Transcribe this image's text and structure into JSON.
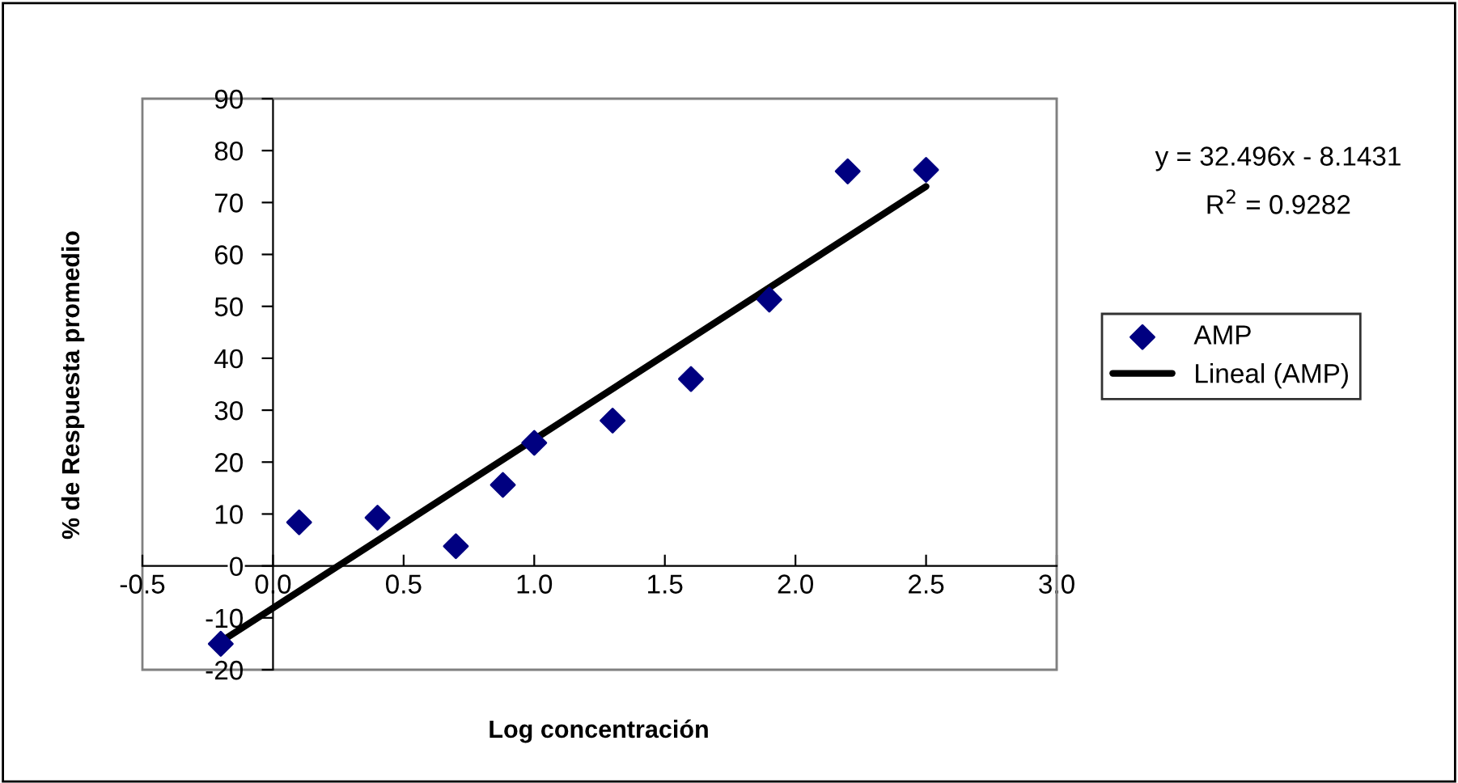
{
  "chart_data": {
    "type": "scatter",
    "xlabel": "Log concentración",
    "ylabel": "% de Respuesta promedio",
    "xlim": [
      -0.5,
      3.0
    ],
    "ylim": [
      -20,
      90
    ],
    "xticks": [
      {
        "value": -0.5,
        "label": "-0.5"
      },
      {
        "value": 0,
        "label": "0.0"
      },
      {
        "value": 0.5,
        "label": "0.5"
      },
      {
        "value": 1,
        "label": "1.0"
      },
      {
        "value": 1.5,
        "label": "1.5"
      },
      {
        "value": 2,
        "label": "2.0"
      },
      {
        "value": 2.5,
        "label": "2.5"
      },
      {
        "value": 3,
        "label": "3.0"
      }
    ],
    "yticks": [
      -20,
      -10,
      0,
      10,
      20,
      30,
      40,
      50,
      60,
      70,
      80,
      90
    ],
    "grid": false,
    "legend": "right",
    "annotations": [
      "y = 32.496x - 8.1431",
      "R$^{2}$ = 0.9282"
    ],
    "series": [
      {
        "name": "AMP",
        "color": "#000080",
        "marker": "diamond",
        "x": [
          -0.2,
          0.1,
          0.4,
          0.7,
          0.88,
          1.0,
          1.3,
          1.6,
          1.9,
          2.2,
          2.5
        ],
        "values": [
          -15,
          8.4,
          9.3,
          3.8,
          15.6,
          23.7,
          28,
          36,
          51.3,
          76,
          76.3
        ]
      },
      {
        "name": "Lineal (AMP)",
        "type": "line",
        "color": "#000000",
        "line_style": "solid",
        "x": [
          -0.2,
          2.5
        ],
        "values": [
          -14.6,
          73.1
        ]
      }
    ]
  }
}
